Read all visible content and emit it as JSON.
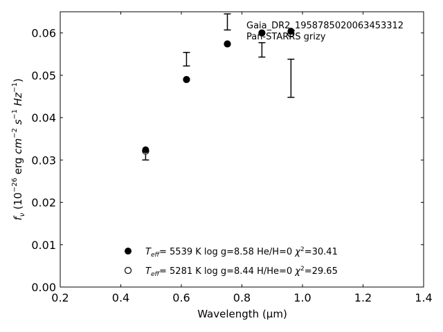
{
  "chart_data": {
    "type": "scatter",
    "xlabel": "Wavelength (μm)",
    "ylabel_parts": {
      "lead": "f",
      "lead_sub": "ν",
      "open": " (10",
      "exp1": "−26",
      "unit1": " erg ",
      "unit_cm": "cm",
      "exp2": "−2",
      "unit_s": " s",
      "exp3": "−1",
      "unit_hz": " Hz",
      "exp4": "−1",
      "close": ")"
    },
    "xlim": [
      0.2,
      1.4
    ],
    "ylim": [
      0.0,
      0.065
    ],
    "x_ticks": [
      "0.2",
      "0.4",
      "0.6",
      "0.8",
      "1.0",
      "1.2",
      "1.4"
    ],
    "y_ticks": [
      "0.00",
      "0.01",
      "0.02",
      "0.03",
      "0.04",
      "0.05",
      "0.06"
    ],
    "annotation_lines": [
      "Gaia_DR2_1958785020063453312",
      "Pan-STARRS grizy"
    ],
    "observed": {
      "points": [
        {
          "x": 0.482,
          "y": 0.0311,
          "yerr": 0.0011
        },
        {
          "x": 0.617,
          "y": 0.0538,
          "yerr": 0.0016
        },
        {
          "x": 0.752,
          "y": 0.0626,
          "yerr": 0.0019
        },
        {
          "x": 0.866,
          "y": 0.056,
          "yerr": 0.0017
        },
        {
          "x": 0.962,
          "y": 0.0493,
          "yerr": 0.0045
        }
      ]
    },
    "series": [
      {
        "marker": "filled-circle",
        "points": [
          {
            "x": 0.482,
            "y": 0.0324
          },
          {
            "x": 0.617,
            "y": 0.049
          },
          {
            "x": 0.752,
            "y": 0.0574
          },
          {
            "x": 0.866,
            "y": 0.06
          },
          {
            "x": 0.962,
            "y": 0.0604
          }
        ],
        "legend": {
          "teff": "T",
          "teff_sub": "eff",
          "text": "=  5539 K  log g=8.58  He/H=0  ",
          "chi": "χ",
          "chi_exp": "2",
          "chi_val": "=30.41"
        }
      },
      {
        "marker": "open-circle",
        "points": [
          {
            "x": 0.482,
            "y": 0.0321
          },
          {
            "x": 0.617,
            "y": 0.049
          },
          {
            "x": 0.752,
            "y": 0.0574
          },
          {
            "x": 0.866,
            "y": 0.06
          },
          {
            "x": 0.962,
            "y": 0.0598
          }
        ],
        "legend": {
          "teff": "T",
          "teff_sub": "eff",
          "text": "=  5281 K  log g=8.44  H/He=0  ",
          "chi": "χ",
          "chi_exp": "2",
          "chi_val": "=29.65"
        }
      }
    ]
  }
}
